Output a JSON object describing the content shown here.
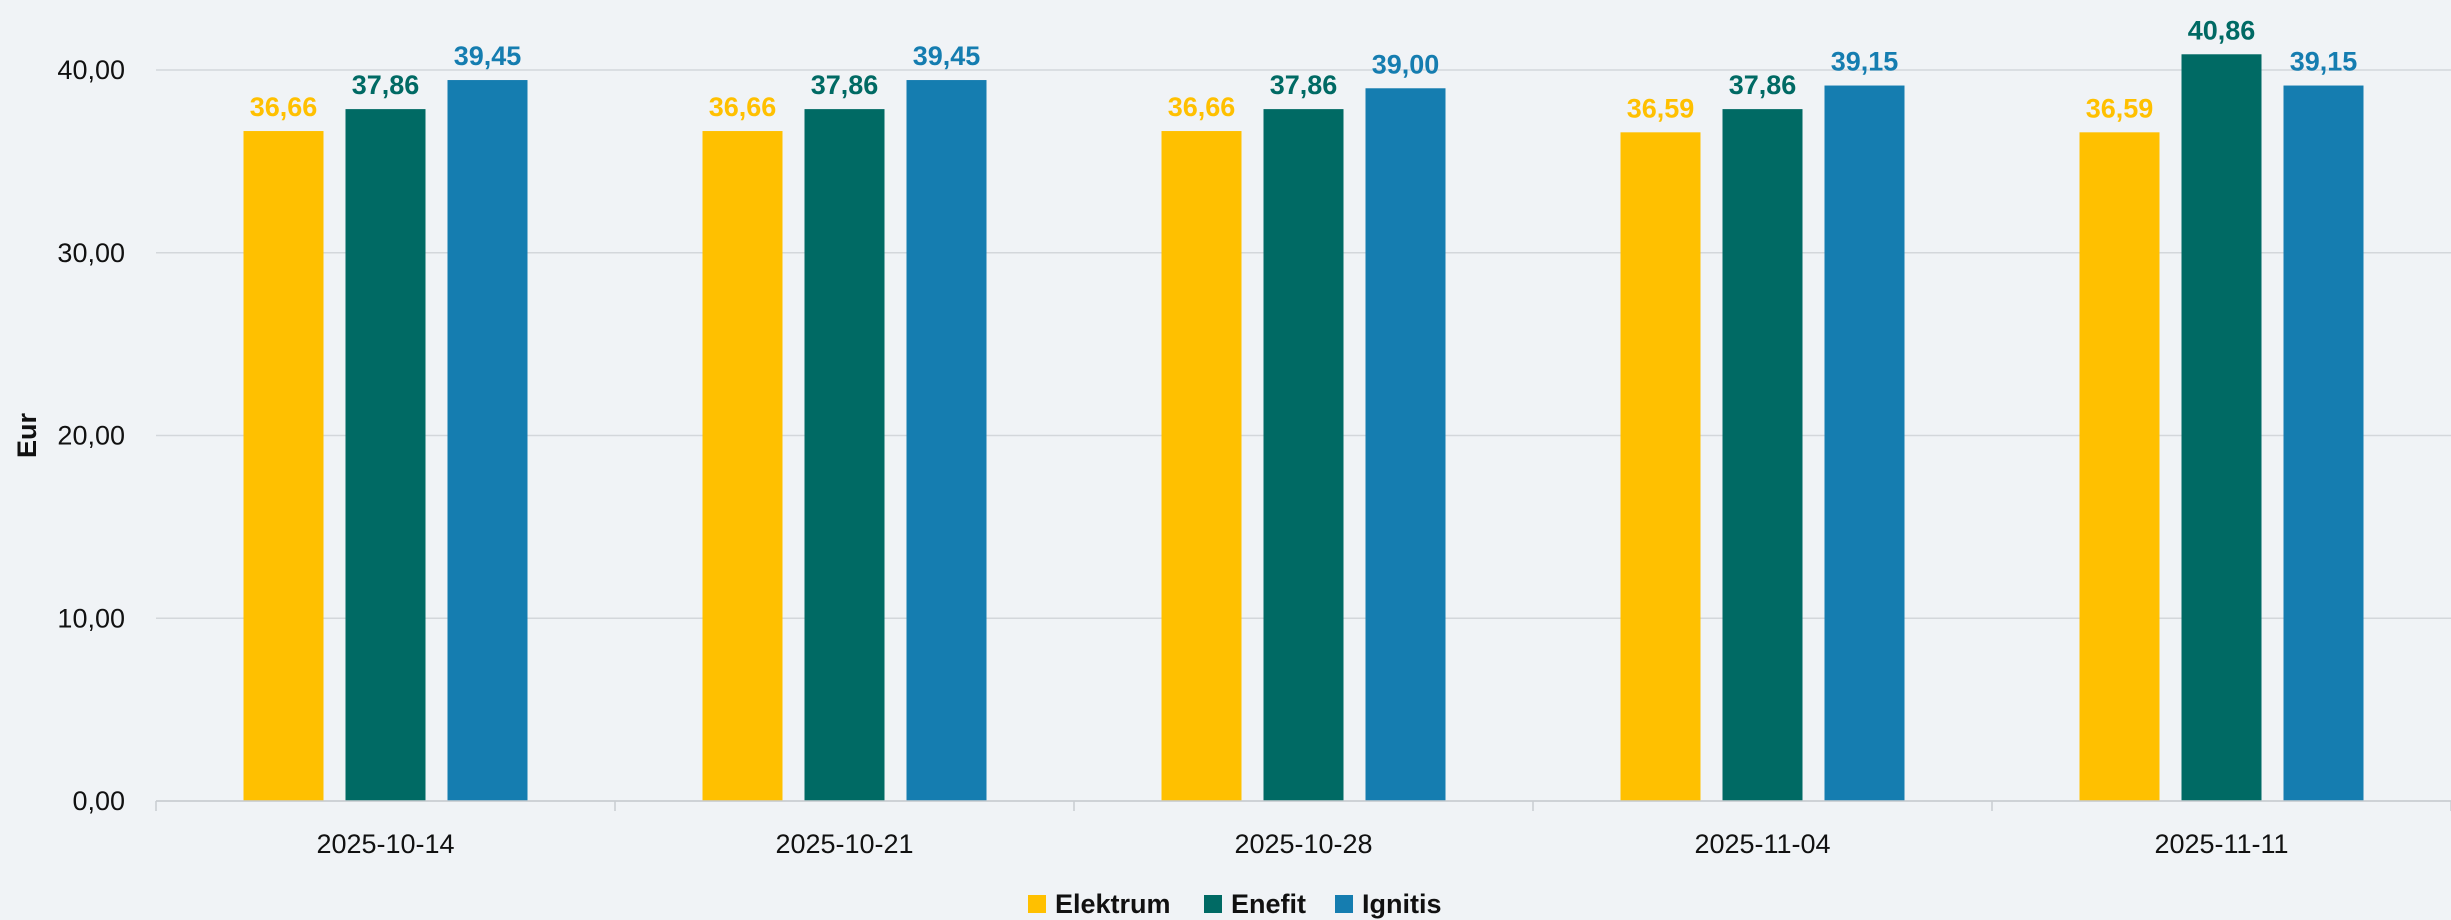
{
  "chart_data": {
    "type": "bar",
    "title": "",
    "xlabel": "",
    "ylabel": "Eur",
    "ylim": [
      0,
      40
    ],
    "yticks": [
      "0,00",
      "10,00",
      "20,00",
      "30,00",
      "40,00"
    ],
    "ytick_values": [
      0,
      10,
      20,
      30,
      40
    ],
    "grid": true,
    "legend_position": "bottom",
    "categories": [
      "2025-10-14",
      "2025-10-21",
      "2025-10-28",
      "2025-11-04",
      "2025-11-11"
    ],
    "series": [
      {
        "name": "Elektrum",
        "color": "#ffc000",
        "values": [
          36.66,
          36.66,
          36.66,
          36.59,
          36.59
        ],
        "labels": [
          "36,66",
          "36,66",
          "36,66",
          "36,59",
          "36,59"
        ]
      },
      {
        "name": "Enefit",
        "color": "#006a64",
        "values": [
          37.86,
          37.86,
          37.86,
          37.86,
          40.86
        ],
        "labels": [
          "37,86",
          "37,86",
          "37,86",
          "37,86",
          "40,86"
        ]
      },
      {
        "name": "Ignitis",
        "color": "#157db0",
        "values": [
          39.45,
          39.45,
          39.0,
          39.15,
          39.15
        ],
        "labels": [
          "39,45",
          "39,45",
          "39,00",
          "39,15",
          "39,15"
        ]
      }
    ]
  }
}
